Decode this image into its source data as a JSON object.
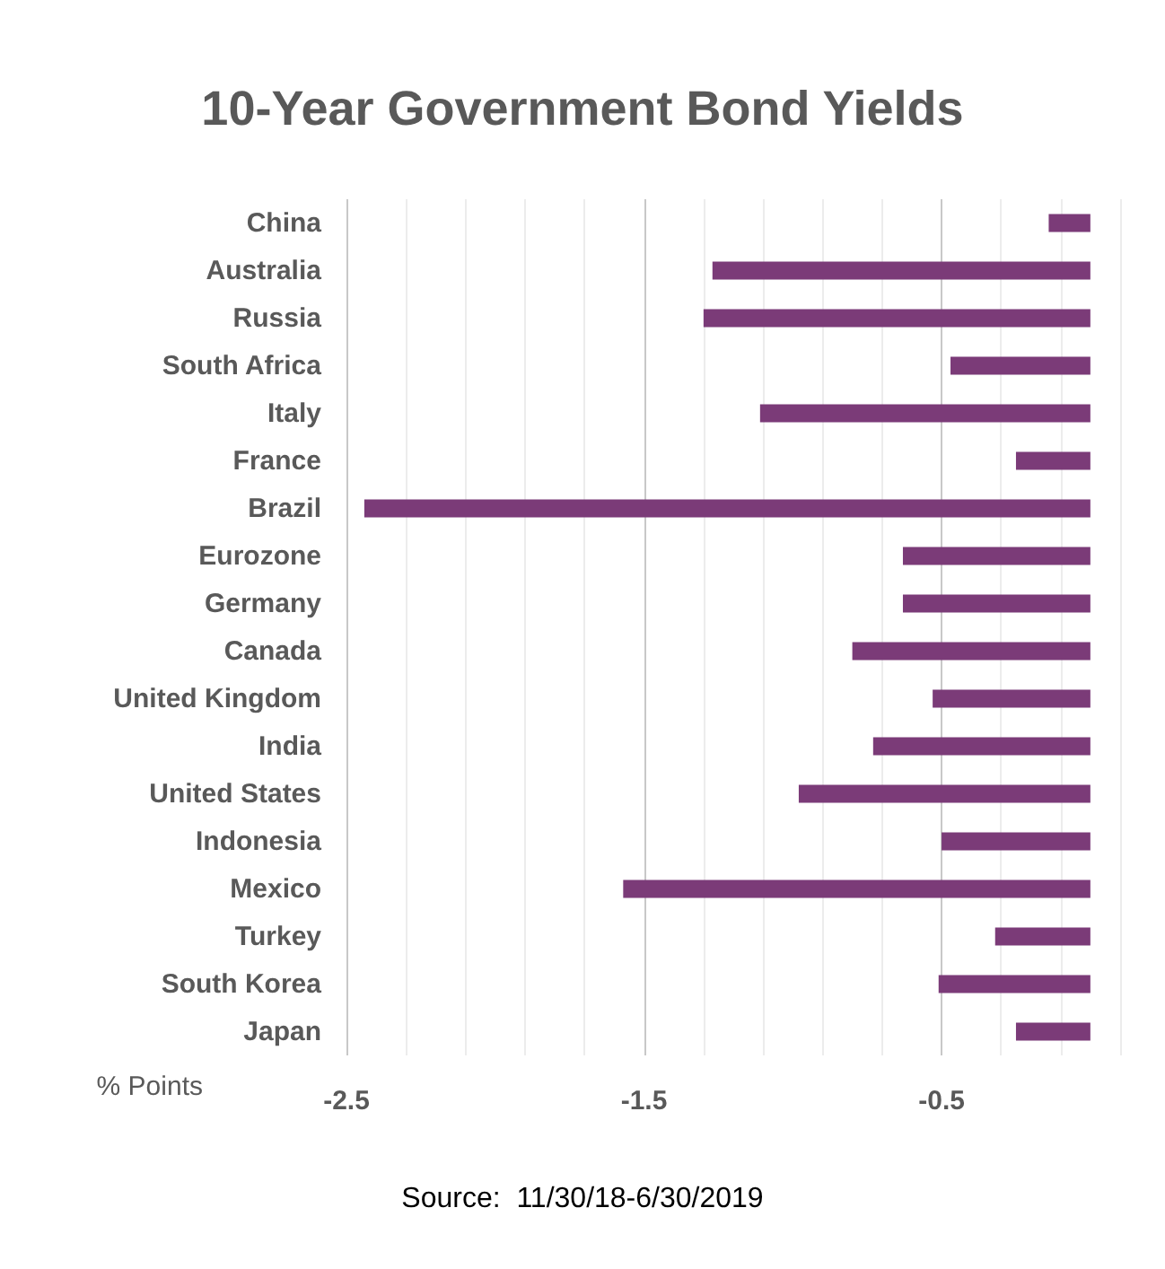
{
  "chart_data": {
    "type": "bar",
    "orientation": "horizontal",
    "title": "10-Year Government Bond Yields",
    "xlabel": "% Points",
    "annotations": [
      "Source:  11/30/18-6/30/2019"
    ],
    "categories": [
      "China",
      "Australia",
      "Russia",
      "South Africa",
      "Italy",
      "France",
      "Brazil",
      "Eurozone",
      "Germany",
      "Canada",
      "United Kingdom",
      "India",
      "United States",
      "Indonesia",
      "Mexico",
      "Turkey",
      "South Korea",
      "Japan"
    ],
    "values": [
      -0.14,
      -1.27,
      -1.3,
      -0.47,
      -1.11,
      -0.25,
      -2.44,
      -0.63,
      -0.63,
      -0.8,
      -0.53,
      -0.73,
      -0.98,
      -0.5,
      -1.57,
      -0.32,
      -0.51,
      -0.25
    ],
    "color": "#7b3b78",
    "xlim": [
      -2.5,
      0.1
    ],
    "xticks": [
      -2.5,
      {
        "value": -2.3,
        "label": null
      },
      {
        "value": -2.1,
        "label": null
      },
      {
        "value": -1.9,
        "label": null
      },
      {
        "value": -1.7,
        "label": null
      },
      -1.5,
      {
        "value": -1.3,
        "label": null
      },
      {
        "value": -1.1,
        "label": null
      },
      {
        "value": -0.9,
        "label": null
      },
      {
        "value": -0.7,
        "label": null
      },
      -0.5,
      {
        "value": -0.3,
        "label": null
      },
      {
        "value": -0.1,
        "label": null
      },
      {
        "value": 0.1,
        "label": null
      }
    ],
    "grid": true
  }
}
